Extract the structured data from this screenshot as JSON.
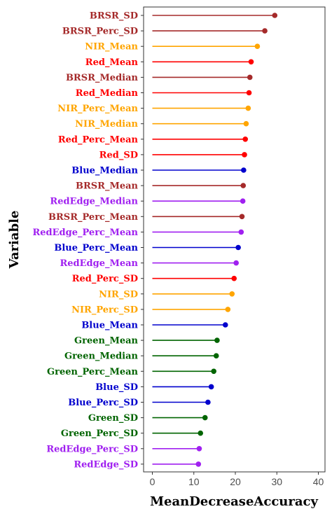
{
  "chart_data": {
    "type": "lollipop",
    "xlabel": "MeanDecreaseAccuracy",
    "ylabel": "Variable",
    "xlim": [
      -2,
      41
    ],
    "xticks": [
      0,
      10,
      20,
      30,
      40
    ],
    "grid": false,
    "colors": {
      "BRSR": "#a52a2a",
      "NIR": "#ffa500",
      "Red": "#ff0000",
      "Blue": "#0000cd",
      "RedEdge": "#a020f0",
      "Green": "#006400"
    },
    "points": [
      {
        "label": "BRSR_SD",
        "group": "BRSR",
        "value": 29.5
      },
      {
        "label": "BRSR_Perc_SD",
        "group": "BRSR",
        "value": 27.1
      },
      {
        "label": "NIR_Mean",
        "group": "NIR",
        "value": 25.3
      },
      {
        "label": "Red_Mean",
        "group": "Red",
        "value": 23.8
      },
      {
        "label": "BRSR_Median",
        "group": "BRSR",
        "value": 23.5
      },
      {
        "label": "Red_Median",
        "group": "Red",
        "value": 23.3
      },
      {
        "label": "NIR_Perc_Mean",
        "group": "NIR",
        "value": 23.1
      },
      {
        "label": "NIR_Median",
        "group": "NIR",
        "value": 22.6
      },
      {
        "label": "Red_Perc_Mean",
        "group": "Red",
        "value": 22.4
      },
      {
        "label": "Red_SD",
        "group": "Red",
        "value": 22.2
      },
      {
        "label": "Blue_Median",
        "group": "Blue",
        "value": 22.0
      },
      {
        "label": "BRSR_Mean",
        "group": "BRSR",
        "value": 21.9
      },
      {
        "label": "RedEdge_Median",
        "group": "RedEdge",
        "value": 21.8
      },
      {
        "label": "BRSR_Perc_Mean",
        "group": "BRSR",
        "value": 21.6
      },
      {
        "label": "RedEdge_Perc_Mean",
        "group": "RedEdge",
        "value": 21.4
      },
      {
        "label": "Blue_Perc_Mean",
        "group": "Blue",
        "value": 20.7
      },
      {
        "label": "RedEdge_Mean",
        "group": "RedEdge",
        "value": 20.2
      },
      {
        "label": "Red_Perc_SD",
        "group": "Red",
        "value": 19.7
      },
      {
        "label": "NIR_SD",
        "group": "NIR",
        "value": 19.2
      },
      {
        "label": "NIR_Perc_SD",
        "group": "NIR",
        "value": 18.2
      },
      {
        "label": "Blue_Mean",
        "group": "Blue",
        "value": 17.6
      },
      {
        "label": "Green_Mean",
        "group": "Green",
        "value": 15.6
      },
      {
        "label": "Green_Median",
        "group": "Green",
        "value": 15.4
      },
      {
        "label": "Green_Perc_Mean",
        "group": "Green",
        "value": 14.8
      },
      {
        "label": "Blue_SD",
        "group": "Blue",
        "value": 14.2
      },
      {
        "label": "Blue_Perc_SD",
        "group": "Blue",
        "value": 13.4
      },
      {
        "label": "Green_SD",
        "group": "Green",
        "value": 12.7
      },
      {
        "label": "Green_Perc_SD",
        "group": "Green",
        "value": 11.6
      },
      {
        "label": "RedEdge_Perc_SD",
        "group": "RedEdge",
        "value": 11.3
      },
      {
        "label": "RedEdge_SD",
        "group": "RedEdge",
        "value": 11.1
      }
    ]
  }
}
